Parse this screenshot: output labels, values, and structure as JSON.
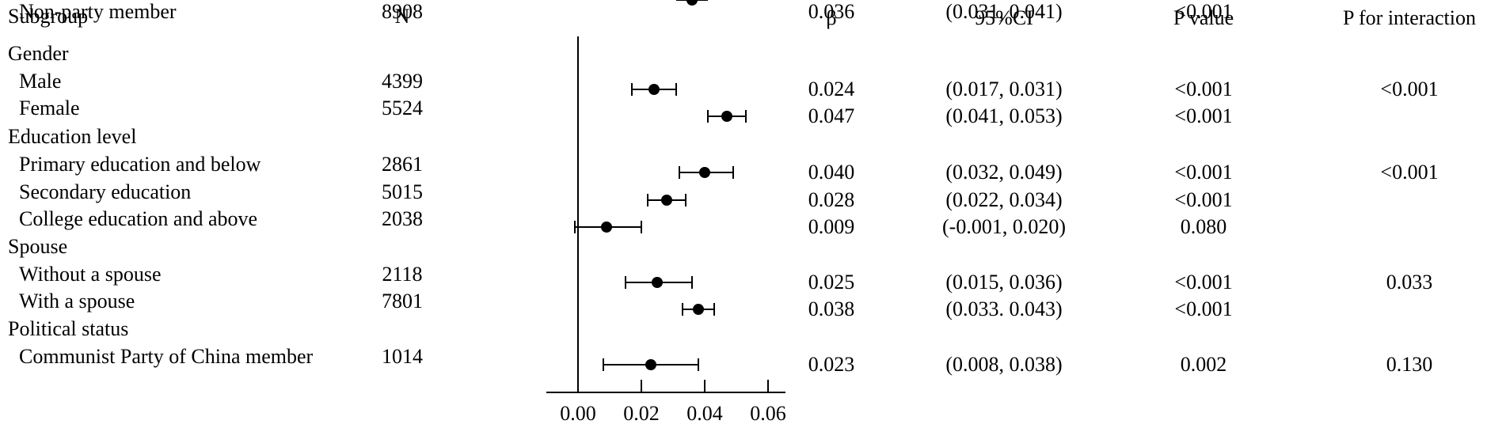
{
  "headers": {
    "subgroup": "Subgroup",
    "n": "N",
    "beta": "β",
    "ci": "95%CI",
    "p": "P value",
    "p_interaction": "P for interaction"
  },
  "chart_data": {
    "type": "forest",
    "xlim": [
      0.0,
      0.06
    ],
    "x_ticks": [
      "0.00",
      "0.02",
      "0.04",
      "0.06"
    ],
    "x_tick_values": [
      0.0,
      0.02,
      0.04,
      0.06
    ],
    "reference_line": 0,
    "rows": [
      {
        "label": "Gender",
        "group": true
      },
      {
        "label": "Male",
        "n": "4399",
        "beta": 0.024,
        "lo": 0.017,
        "hi": 0.031,
        "beta_text": "0.024",
        "ci_text": "(0.017, 0.031)",
        "p_text": "<0.001",
        "pint_text": "<0.001"
      },
      {
        "label": "Female",
        "n": "5524",
        "beta": 0.047,
        "lo": 0.041,
        "hi": 0.053,
        "beta_text": "0.047",
        "ci_text": "(0.041, 0.053)",
        "p_text": "<0.001",
        "pint_text": ""
      },
      {
        "label": "Education level",
        "group": true
      },
      {
        "label": "Primary education and below",
        "n": "2861",
        "beta": 0.04,
        "lo": 0.032,
        "hi": 0.049,
        "beta_text": "0.040",
        "ci_text": "(0.032, 0.049)",
        "p_text": "<0.001",
        "pint_text": "<0.001"
      },
      {
        "label": "Secondary education",
        "n": "5015",
        "beta": 0.028,
        "lo": 0.022,
        "hi": 0.034,
        "beta_text": "0.028",
        "ci_text": "(0.022, 0.034)",
        "p_text": "<0.001",
        "pint_text": ""
      },
      {
        "label": "College education and above",
        "n": "2038",
        "beta": 0.009,
        "lo": -0.001,
        "hi": 0.02,
        "beta_text": "0.009",
        "ci_text": "(-0.001, 0.020)",
        "p_text": "0.080",
        "pint_text": ""
      },
      {
        "label": "Spouse",
        "group": true
      },
      {
        "label": "Without a spouse",
        "n": "2118",
        "beta": 0.025,
        "lo": 0.015,
        "hi": 0.036,
        "beta_text": "0.025",
        "ci_text": "(0.015, 0.036)",
        "p_text": "<0.001",
        "pint_text": "0.033"
      },
      {
        "label": "With a spouse",
        "n": "7801",
        "beta": 0.038,
        "lo": 0.033,
        "hi": 0.043,
        "beta_text": "0.038",
        "ci_text": "(0.033. 0.043)",
        "p_text": "<0.001",
        "pint_text": ""
      },
      {
        "label": "Political status",
        "group": true
      },
      {
        "label": "Communist Party of China member",
        "n": "1014",
        "beta": 0.023,
        "lo": 0.008,
        "hi": 0.038,
        "beta_text": "0.023",
        "ci_text": "(0.008, 0.038)",
        "p_text": "0.002",
        "pint_text": "0.130"
      },
      {
        "label": "Non-party member",
        "n": "8908",
        "beta": 0.036,
        "lo": 0.031,
        "hi": 0.041,
        "beta_text": "0.036",
        "ci_text": "(0.031, 0.041)",
        "p_text": "<0.001",
        "pint_text": ""
      }
    ]
  }
}
